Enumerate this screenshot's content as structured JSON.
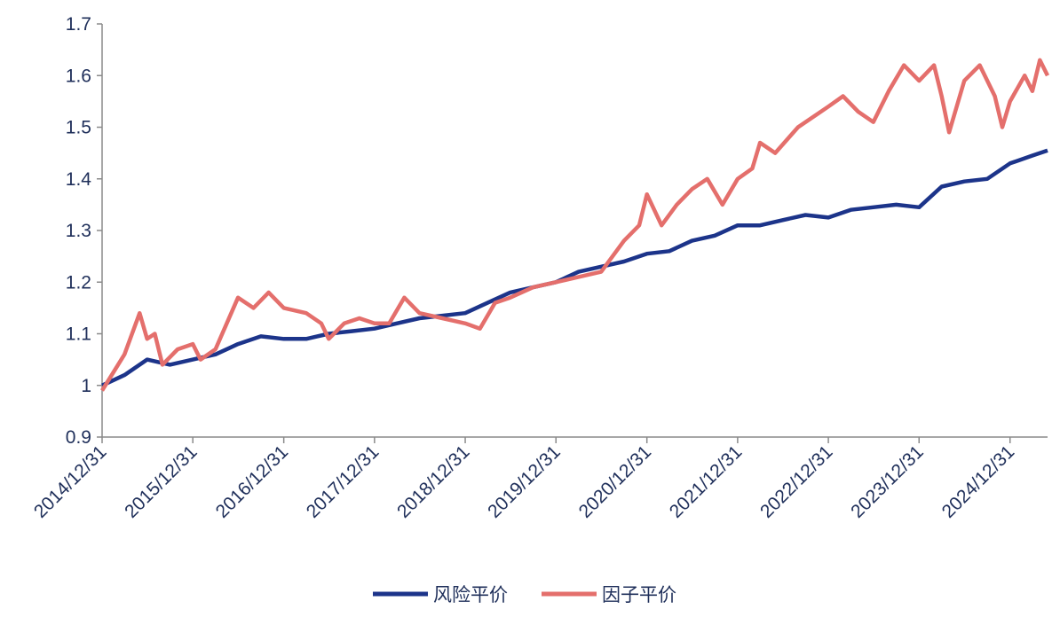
{
  "chart_data": {
    "type": "line",
    "xlim": [
      "2014/12/31",
      "2025/05/31"
    ],
    "xticks": [
      "2014/12/31",
      "2015/12/31",
      "2016/12/31",
      "2017/12/31",
      "2018/12/31",
      "2019/12/31",
      "2020/12/31",
      "2021/12/31",
      "2022/12/31",
      "2023/12/31",
      "2024/12/31"
    ],
    "ylim": [
      0.9,
      1.7
    ],
    "yticks": [
      0.9,
      1,
      1.1,
      1.2,
      1.3,
      1.4,
      1.5,
      1.6,
      1.7
    ],
    "legend": "bottom",
    "series": [
      {
        "name": "风险平价",
        "color": "#1c348a",
        "x": [
          "2014/12/31",
          "2015/03/31",
          "2015/06/30",
          "2015/09/30",
          "2015/12/31",
          "2016/03/31",
          "2016/06/30",
          "2016/09/30",
          "2016/12/31",
          "2017/03/31",
          "2017/06/30",
          "2017/09/30",
          "2017/12/31",
          "2018/03/31",
          "2018/06/30",
          "2018/09/30",
          "2018/12/31",
          "2019/03/31",
          "2019/06/30",
          "2019/09/30",
          "2019/12/31",
          "2020/03/31",
          "2020/06/30",
          "2020/09/30",
          "2020/12/31",
          "2021/03/31",
          "2021/06/30",
          "2021/09/30",
          "2021/12/31",
          "2022/03/31",
          "2022/06/30",
          "2022/09/30",
          "2022/12/31",
          "2023/03/31",
          "2023/06/30",
          "2023/09/30",
          "2023/12/31",
          "2024/03/31",
          "2024/06/30",
          "2024/09/30",
          "2024/12/31",
          "2025/03/31",
          "2025/05/31"
        ],
        "values": [
          1.0,
          1.02,
          1.05,
          1.04,
          1.05,
          1.06,
          1.08,
          1.095,
          1.09,
          1.09,
          1.1,
          1.105,
          1.11,
          1.12,
          1.13,
          1.135,
          1.14,
          1.16,
          1.18,
          1.19,
          1.2,
          1.22,
          1.23,
          1.24,
          1.255,
          1.26,
          1.28,
          1.29,
          1.31,
          1.31,
          1.32,
          1.33,
          1.325,
          1.34,
          1.345,
          1.35,
          1.345,
          1.385,
          1.395,
          1.4,
          1.43,
          1.445,
          1.455
        ]
      },
      {
        "name": "因子平价",
        "color": "#e46f6c",
        "x": [
          "2014/12/31",
          "2015/03/31",
          "2015/05/31",
          "2015/06/30",
          "2015/07/31",
          "2015/08/31",
          "2015/10/31",
          "2015/12/31",
          "2016/01/31",
          "2016/03/31",
          "2016/06/30",
          "2016/08/31",
          "2016/10/31",
          "2016/12/31",
          "2017/03/31",
          "2017/05/31",
          "2017/06/30",
          "2017/08/31",
          "2017/10/31",
          "2017/12/31",
          "2018/02/28",
          "2018/04/30",
          "2018/06/30",
          "2018/09/30",
          "2018/12/31",
          "2019/02/28",
          "2019/04/30",
          "2019/06/30",
          "2019/09/30",
          "2019/12/31",
          "2020/03/31",
          "2020/06/30",
          "2020/09/30",
          "2020/11/30",
          "2020/12/31",
          "2021/02/28",
          "2021/04/30",
          "2021/06/30",
          "2021/08/31",
          "2021/10/31",
          "2021/12/31",
          "2022/02/28",
          "2022/03/31",
          "2022/05/31",
          "2022/08/31",
          "2022/12/31",
          "2023/02/28",
          "2023/04/30",
          "2023/06/30",
          "2023/08/31",
          "2023/10/31",
          "2023/12/31",
          "2024/02/29",
          "2024/03/31",
          "2024/04/30",
          "2024/06/30",
          "2024/08/31",
          "2024/10/31",
          "2024/11/30",
          "2024/12/31",
          "2025/02/28",
          "2025/03/31",
          "2025/04/30",
          "2025/05/31"
        ],
        "values": [
          0.99,
          1.06,
          1.14,
          1.09,
          1.1,
          1.04,
          1.07,
          1.08,
          1.05,
          1.07,
          1.17,
          1.15,
          1.18,
          1.15,
          1.14,
          1.12,
          1.09,
          1.12,
          1.13,
          1.12,
          1.12,
          1.17,
          1.14,
          1.13,
          1.12,
          1.11,
          1.16,
          1.17,
          1.19,
          1.2,
          1.21,
          1.22,
          1.28,
          1.31,
          1.37,
          1.31,
          1.35,
          1.38,
          1.4,
          1.35,
          1.4,
          1.42,
          1.47,
          1.45,
          1.5,
          1.54,
          1.56,
          1.53,
          1.51,
          1.57,
          1.62,
          1.59,
          1.62,
          1.56,
          1.49,
          1.59,
          1.62,
          1.56,
          1.5,
          1.55,
          1.6,
          1.57,
          1.63,
          1.6
        ]
      }
    ]
  }
}
